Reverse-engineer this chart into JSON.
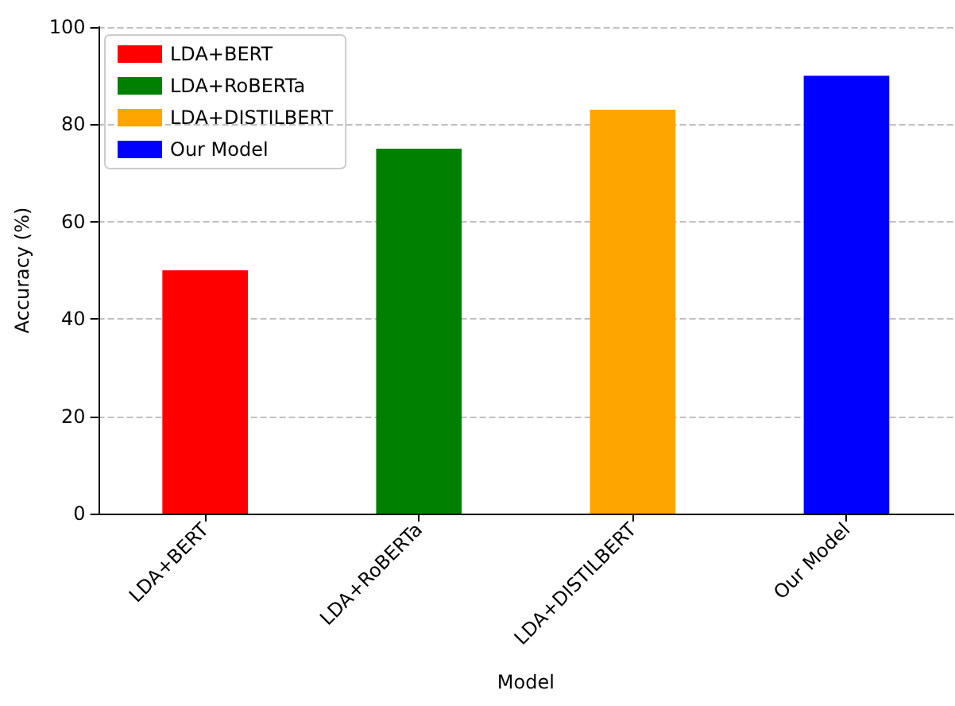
{
  "chart_data": {
    "type": "bar",
    "xlabel": "Model",
    "ylabel": "Accuracy (%)",
    "categories": [
      "LDA+BERT",
      "LDA+RoBERTa",
      "LDA+DISTILBERT",
      "Our Model"
    ],
    "series": [
      {
        "name": "LDA+BERT",
        "color": "#ff0000",
        "values": [
          50,
          null,
          null,
          null
        ]
      },
      {
        "name": "LDA+RoBERTa",
        "color": "#008000",
        "values": [
          null,
          75,
          null,
          null
        ]
      },
      {
        "name": "LDA+DISTILBERT",
        "color": "#ffa500",
        "values": [
          null,
          null,
          83,
          null
        ]
      },
      {
        "name": "Our Model",
        "color": "#0000ff",
        "values": [
          null,
          null,
          null,
          90
        ]
      }
    ],
    "ylim": [
      0,
      100
    ],
    "yticks": [
      0,
      20,
      40,
      60,
      80,
      100
    ],
    "grid": "y",
    "legend": "top left"
  }
}
